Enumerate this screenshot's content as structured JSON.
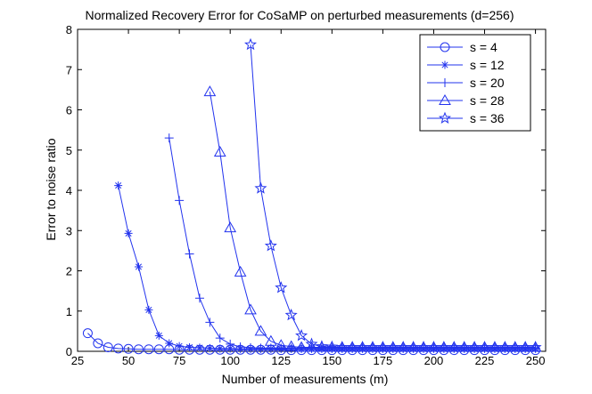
{
  "chart_data": {
    "type": "line",
    "title": "Normalized Recovery Error for CoSaMP on perturbed measurements (d=256)",
    "xlabel": "Number of measurements (m)",
    "ylabel": "Error to noise ratio",
    "xlim": [
      25,
      255
    ],
    "ylim": [
      0,
      8
    ],
    "xticks": [
      "25",
      "50",
      "75",
      "100",
      "125",
      "150",
      "175",
      "200",
      "225",
      "250"
    ],
    "yticks": [
      "0",
      "1",
      "2",
      "3",
      "4",
      "5",
      "6",
      "7",
      "8"
    ],
    "grid": false,
    "legend_position": "top-right",
    "color": "#2233ee",
    "series": [
      {
        "name": "s = 4",
        "marker": "circle",
        "x": [
          30,
          35,
          40,
          45,
          50,
          55,
          60,
          65,
          70,
          75,
          80,
          85,
          90,
          95,
          100,
          105,
          110,
          115,
          120,
          125,
          130,
          135,
          140,
          145,
          150,
          155,
          160,
          165,
          170,
          175,
          180,
          185,
          190,
          195,
          200,
          205,
          210,
          215,
          220,
          225,
          230,
          235,
          240,
          245,
          250
        ],
        "y": [
          0.45,
          0.2,
          0.1,
          0.07,
          0.06,
          0.05,
          0.05,
          0.05,
          0.05,
          0.04,
          0.04,
          0.04,
          0.04,
          0.04,
          0.04,
          0.04,
          0.04,
          0.04,
          0.04,
          0.03,
          0.03,
          0.03,
          0.03,
          0.03,
          0.03,
          0.03,
          0.03,
          0.03,
          0.03,
          0.03,
          0.03,
          0.03,
          0.03,
          0.03,
          0.03,
          0.03,
          0.03,
          0.03,
          0.03,
          0.03,
          0.03,
          0.03,
          0.03,
          0.03,
          0.03
        ]
      },
      {
        "name": "s = 12",
        "marker": "asterisk",
        "x": [
          45,
          50,
          55,
          60,
          65,
          70,
          75,
          80,
          85,
          90,
          95,
          100,
          105,
          110,
          115,
          120,
          125,
          130,
          135,
          140,
          145,
          150,
          155,
          160,
          165,
          170,
          175,
          180,
          185,
          190,
          195,
          200,
          205,
          210,
          215,
          220,
          225,
          230,
          235,
          240,
          245,
          250
        ],
        "y": [
          4.12,
          2.93,
          2.1,
          1.03,
          0.39,
          0.2,
          0.13,
          0.1,
          0.09,
          0.08,
          0.07,
          0.07,
          0.06,
          0.06,
          0.06,
          0.06,
          0.06,
          0.06,
          0.06,
          0.06,
          0.06,
          0.06,
          0.06,
          0.06,
          0.06,
          0.06,
          0.06,
          0.06,
          0.06,
          0.06,
          0.06,
          0.06,
          0.06,
          0.06,
          0.06,
          0.06,
          0.06,
          0.06,
          0.06,
          0.06,
          0.06,
          0.06
        ]
      },
      {
        "name": "s = 20",
        "marker": "plus",
        "x": [
          70,
          75,
          80,
          85,
          90,
          95,
          100,
          105,
          110,
          115,
          120,
          125,
          130,
          135,
          140,
          145,
          150,
          155,
          160,
          165,
          170,
          175,
          180,
          185,
          190,
          195,
          200,
          205,
          210,
          215,
          220,
          225,
          230,
          235,
          240,
          245,
          250
        ],
        "y": [
          5.3,
          3.75,
          2.42,
          1.32,
          0.72,
          0.33,
          0.18,
          0.11,
          0.09,
          0.08,
          0.08,
          0.08,
          0.08,
          0.08,
          0.08,
          0.08,
          0.08,
          0.08,
          0.08,
          0.08,
          0.08,
          0.08,
          0.08,
          0.08,
          0.08,
          0.08,
          0.08,
          0.08,
          0.08,
          0.08,
          0.08,
          0.08,
          0.08,
          0.08,
          0.08,
          0.08,
          0.08
        ]
      },
      {
        "name": "s = 28",
        "marker": "triangle",
        "x": [
          90,
          95,
          100,
          105,
          110,
          115,
          120,
          125,
          130,
          135,
          140,
          145,
          150,
          155,
          160,
          165,
          170,
          175,
          180,
          185,
          190,
          195,
          200,
          205,
          210,
          215,
          220,
          225,
          230,
          235,
          240,
          245,
          250
        ],
        "y": [
          6.45,
          4.95,
          3.07,
          1.97,
          1.03,
          0.5,
          0.25,
          0.15,
          0.12,
          0.1,
          0.1,
          0.1,
          0.1,
          0.1,
          0.1,
          0.1,
          0.1,
          0.1,
          0.1,
          0.1,
          0.1,
          0.1,
          0.1,
          0.1,
          0.1,
          0.1,
          0.1,
          0.1,
          0.1,
          0.1,
          0.1,
          0.1,
          0.1
        ]
      },
      {
        "name": "s = 36",
        "marker": "star",
        "x": [
          110,
          115,
          120,
          125,
          130,
          135,
          140,
          145,
          150,
          155,
          160,
          165,
          170,
          175,
          180,
          185,
          190,
          195,
          200,
          205,
          210,
          215,
          220,
          225,
          230,
          235,
          240,
          245,
          250
        ],
        "y": [
          7.62,
          4.05,
          2.62,
          1.58,
          0.9,
          0.39,
          0.18,
          0.12,
          0.11,
          0.1,
          0.1,
          0.1,
          0.1,
          0.1,
          0.1,
          0.1,
          0.1,
          0.1,
          0.1,
          0.1,
          0.1,
          0.1,
          0.1,
          0.1,
          0.1,
          0.1,
          0.1,
          0.1,
          0.1
        ]
      }
    ]
  }
}
